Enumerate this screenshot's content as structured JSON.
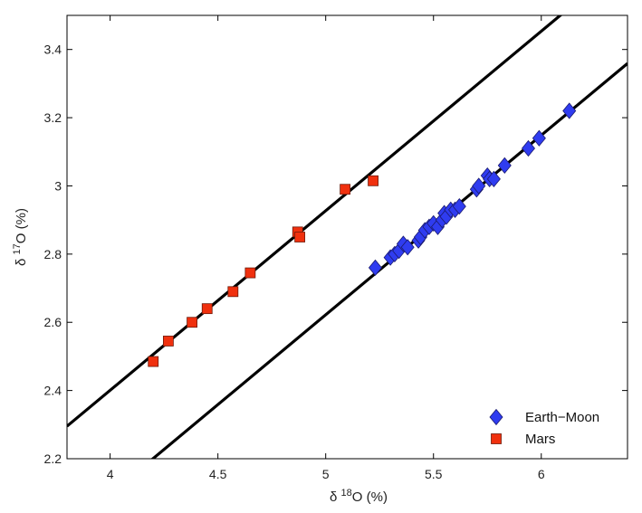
{
  "chart_data": {
    "type": "scatter",
    "title": "",
    "xlabel": {
      "base": "δ ",
      "sup": "18",
      "rest": "O (%)"
    },
    "ylabel": {
      "base": "δ ",
      "sup": "17",
      "rest": "O (%)"
    },
    "xlim": [
      3.8,
      6.4
    ],
    "ylim": [
      2.2,
      3.5
    ],
    "xticks": [
      "4",
      "4.5",
      "5",
      "5.5",
      "6"
    ],
    "yticks": [
      "2.2",
      "2.4",
      "2.6",
      "2.8",
      "3",
      "3.2",
      "3.4"
    ],
    "xtick_values": [
      4,
      4.5,
      5,
      5.5,
      6
    ],
    "ytick_values": [
      2.2,
      2.4,
      2.6,
      2.8,
      3.0,
      3.2,
      3.4
    ],
    "grid": false,
    "legend": "bottom-right",
    "lines": [
      {
        "slope": 0.5265,
        "intercept": 0.2946
      },
      {
        "slope": 0.5265,
        "intercept": -0.0105
      }
    ],
    "series": [
      {
        "name": "Earth−Moon",
        "marker": "diamond",
        "color": "#2f3cf0",
        "x": [
          5.23,
          5.3,
          5.32,
          5.34,
          5.36,
          5.38,
          5.43,
          5.44,
          5.46,
          5.48,
          5.5,
          5.52,
          5.54,
          5.55,
          5.56,
          5.58,
          5.6,
          5.62,
          5.7,
          5.71,
          5.75,
          5.76,
          5.78,
          5.83,
          5.94,
          5.99,
          6.13
        ],
        "y": [
          2.76,
          2.79,
          2.8,
          2.81,
          2.83,
          2.82,
          2.84,
          2.85,
          2.87,
          2.88,
          2.89,
          2.88,
          2.9,
          2.92,
          2.91,
          2.93,
          2.93,
          2.94,
          2.99,
          3.0,
          3.03,
          3.02,
          3.02,
          3.06,
          3.11,
          3.14,
          3.22
        ]
      },
      {
        "name": "Mars",
        "marker": "square",
        "color": "#f0300e",
        "x": [
          4.2,
          4.27,
          4.38,
          4.45,
          4.57,
          4.65,
          4.87,
          4.88,
          5.09,
          5.22
        ],
        "y": [
          2.485,
          2.545,
          2.6,
          2.64,
          2.69,
          2.745,
          2.865,
          2.85,
          2.99,
          3.015
        ]
      }
    ]
  }
}
